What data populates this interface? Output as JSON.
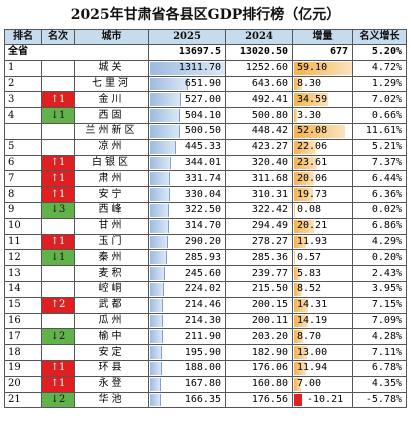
{
  "title": "2025年甘肃省各县区GDP排行榜（亿元）",
  "headers": {
    "rank": "排名",
    "change": "名次",
    "city": "城市",
    "y2025": "2025",
    "y2024": "2024",
    "increase": "增量",
    "growth": "名义增长"
  },
  "total": {
    "label": "全省",
    "y2025": "13697.5",
    "y2024": "13020.50",
    "increase": "677",
    "growth": "5.20%"
  },
  "rows": [
    {
      "rank": "1",
      "change": "",
      "dir": "",
      "city": "城关",
      "y2025": "1311.70",
      "v2025": 1311.7,
      "y2024": "1252.60",
      "increase": "59.10",
      "inc": 59.1,
      "growth": "4.72%"
    },
    {
      "rank": "2",
      "change": "",
      "dir": "",
      "city": "七里河",
      "y2025": "651.90",
      "v2025": 651.9,
      "y2024": "643.60",
      "increase": "8.30",
      "inc": 8.3,
      "growth": "1.29%"
    },
    {
      "rank": "3",
      "change": "↑1",
      "dir": "up",
      "city": "金川",
      "y2025": "527.00",
      "v2025": 527.0,
      "y2024": "492.41",
      "increase": "34.59",
      "inc": 34.59,
      "growth": "7.02%"
    },
    {
      "rank": "4",
      "change": "↓1",
      "dir": "down",
      "city": "西固",
      "y2025": "504.10",
      "v2025": 504.1,
      "y2024": "500.80",
      "increase": "3.30",
      "inc": 3.3,
      "growth": "0.66%"
    },
    {
      "rank": "",
      "change": "",
      "dir": "",
      "city": "兰州新区",
      "y2025": "500.50",
      "v2025": 500.5,
      "y2024": "448.42",
      "increase": "52.08",
      "inc": 52.08,
      "growth": "11.61%"
    },
    {
      "rank": "5",
      "change": "",
      "dir": "",
      "city": "凉州",
      "y2025": "445.33",
      "v2025": 445.33,
      "y2024": "423.27",
      "increase": "22.06",
      "inc": 22.06,
      "growth": "5.21%"
    },
    {
      "rank": "6",
      "change": "↑1",
      "dir": "up",
      "city": "白银区",
      "y2025": "344.01",
      "v2025": 344.01,
      "y2024": "320.40",
      "increase": "23.61",
      "inc": 23.61,
      "growth": "7.37%"
    },
    {
      "rank": "7",
      "change": "↑1",
      "dir": "up",
      "city": "肃州",
      "y2025": "331.74",
      "v2025": 331.74,
      "y2024": "311.68",
      "increase": "20.06",
      "inc": 20.06,
      "growth": "6.44%"
    },
    {
      "rank": "8",
      "change": "↑1",
      "dir": "up",
      "city": "安宁",
      "y2025": "330.04",
      "v2025": 330.04,
      "y2024": "310.31",
      "increase": "19.73",
      "inc": 19.73,
      "growth": "6.36%"
    },
    {
      "rank": "9",
      "change": "↓3",
      "dir": "down",
      "city": "西峰",
      "y2025": "322.50",
      "v2025": 322.5,
      "y2024": "322.42",
      "increase": "0.08",
      "inc": 0.08,
      "growth": "0.02%"
    },
    {
      "rank": "10",
      "change": "",
      "dir": "",
      "city": "甘州",
      "y2025": "314.70",
      "v2025": 314.7,
      "y2024": "294.49",
      "increase": "20.21",
      "inc": 20.21,
      "growth": "6.86%"
    },
    {
      "rank": "11",
      "change": "↑1",
      "dir": "up",
      "city": "玉门",
      "y2025": "290.20",
      "v2025": 290.2,
      "y2024": "278.27",
      "increase": "11.93",
      "inc": 11.93,
      "growth": "4.29%"
    },
    {
      "rank": "12",
      "change": "↓1",
      "dir": "down",
      "city": "秦州",
      "y2025": "285.93",
      "v2025": 285.93,
      "y2024": "285.36",
      "increase": "0.57",
      "inc": 0.57,
      "growth": "0.20%"
    },
    {
      "rank": "13",
      "change": "",
      "dir": "",
      "city": "麦积",
      "y2025": "245.60",
      "v2025": 245.6,
      "y2024": "239.77",
      "increase": "5.83",
      "inc": 5.83,
      "growth": "2.43%"
    },
    {
      "rank": "14",
      "change": "",
      "dir": "",
      "city": "崆峒",
      "y2025": "224.02",
      "v2025": 224.02,
      "y2024": "215.50",
      "increase": "8.52",
      "inc": 8.52,
      "growth": "3.95%"
    },
    {
      "rank": "15",
      "change": "↑2",
      "dir": "up",
      "city": "武都",
      "y2025": "214.46",
      "v2025": 214.46,
      "y2024": "200.15",
      "increase": "14.31",
      "inc": 14.31,
      "growth": "7.15%"
    },
    {
      "rank": "16",
      "change": "",
      "dir": "",
      "city": "瓜州",
      "y2025": "214.30",
      "v2025": 214.3,
      "y2024": "200.11",
      "increase": "14.19",
      "inc": 14.19,
      "growth": "7.09%"
    },
    {
      "rank": "17",
      "change": "↓2",
      "dir": "down",
      "city": "榆中",
      "y2025": "211.90",
      "v2025": 211.9,
      "y2024": "203.20",
      "increase": "8.70",
      "inc": 8.7,
      "growth": "4.28%"
    },
    {
      "rank": "18",
      "change": "",
      "dir": "",
      "city": "安定",
      "y2025": "195.90",
      "v2025": 195.9,
      "y2024": "182.90",
      "increase": "13.00",
      "inc": 13.0,
      "growth": "7.11%"
    },
    {
      "rank": "19",
      "change": "↑1",
      "dir": "up",
      "city": "环县",
      "y2025": "188.00",
      "v2025": 188.0,
      "y2024": "176.06",
      "increase": "11.94",
      "inc": 11.94,
      "growth": "6.78%"
    },
    {
      "rank": "20",
      "change": "↑1",
      "dir": "up",
      "city": "永登",
      "y2025": "167.80",
      "v2025": 167.8,
      "y2024": "160.80",
      "increase": "7.00",
      "inc": 7.0,
      "growth": "4.35%"
    },
    {
      "rank": "21",
      "change": "↓2",
      "dir": "down",
      "city": "华池",
      "y2025": "166.35",
      "v2025": 166.35,
      "y2024": "176.56",
      "increase": "-10.21",
      "inc": -10.21,
      "growth": "-5.78%"
    }
  ],
  "colors": {
    "header_bg": "#c6dbec",
    "rank_up": "#e02020",
    "rank_down": "#61b24a",
    "bar_2025": "#9bbbe2",
    "bar_increase": "#f3b24d",
    "bar_negative": "#e22020"
  }
}
